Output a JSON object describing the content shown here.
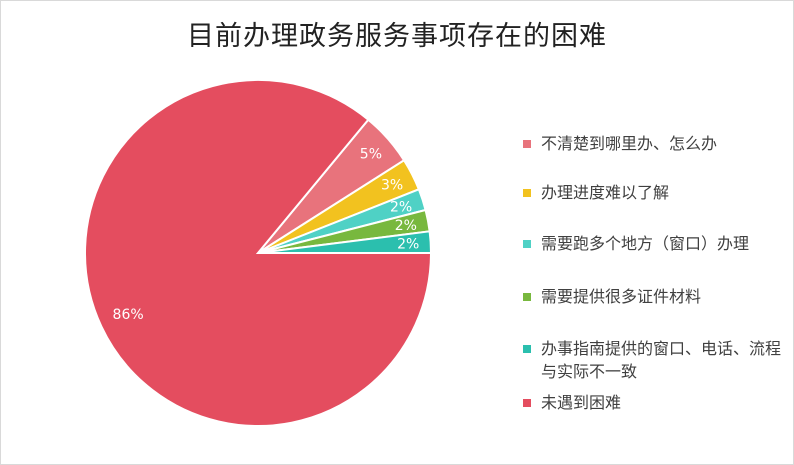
{
  "chart_data": {
    "type": "pie",
    "title": "目前办理政务服务事项存在的困难",
    "legend_position": "right",
    "slices": [
      {
        "label": "不清楚到哪里办、怎么办",
        "value": 5,
        "display": "5%",
        "color": "#e8737c"
      },
      {
        "label": "办理进度难以了解",
        "value": 3,
        "display": "3%",
        "color": "#f2c21f"
      },
      {
        "label": "需要跑多个地方（窗口）办理",
        "value": 2,
        "display": "2%",
        "color": "#4fd1c5"
      },
      {
        "label": "需要提供很多证件材料",
        "value": 2,
        "display": "2%",
        "color": "#78b83e"
      },
      {
        "label": "办事指南提供的窗口、电话、流程与实际不一致",
        "value": 2,
        "display": "2%",
        "color": "#2bbfae"
      },
      {
        "label": "未遇到困难",
        "value": 86,
        "display": "86%",
        "color": "#e44d5f"
      }
    ]
  }
}
